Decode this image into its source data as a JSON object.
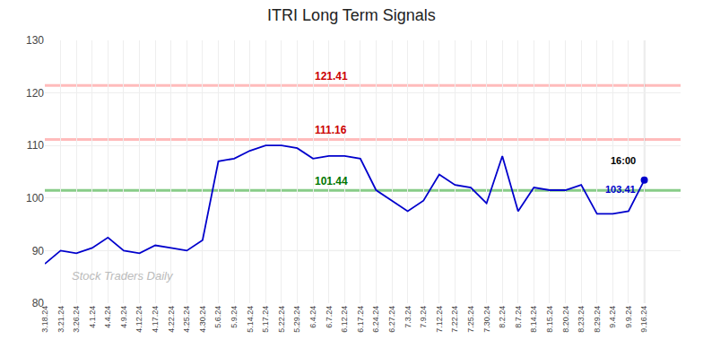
{
  "chart_data": {
    "type": "line",
    "title": "ITRI Long Term Signals",
    "categories": [
      "3.18.24",
      "3.21.24",
      "3.26.24",
      "4.1.24",
      "4.4.24",
      "4.9.24",
      "4.12.24",
      "4.17.24",
      "4.22.24",
      "4.25.24",
      "4.30.24",
      "5.6.24",
      "5.9.24",
      "5.14.24",
      "5.17.24",
      "5.22.24",
      "5.29.24",
      "6.4.24",
      "6.7.24",
      "6.12.24",
      "6.17.24",
      "6.24.24",
      "6.27.24",
      "7.3.24",
      "7.9.24",
      "7.12.24",
      "7.22.24",
      "7.25.24",
      "7.30.24",
      "8.2.24",
      "8.7.24",
      "8.14.24",
      "8.15.24",
      "8.20.24",
      "8.23.24",
      "8.29.24",
      "9.4.24",
      "9.9.24",
      "9.16.24"
    ],
    "values": [
      87.5,
      90.0,
      89.5,
      90.5,
      92.5,
      90.0,
      89.5,
      91.0,
      90.5,
      90.0,
      92.0,
      107.0,
      107.5,
      109.0,
      110.0,
      110.0,
      109.5,
      107.5,
      108.0,
      108.0,
      107.5,
      101.5,
      99.5,
      97.5,
      99.5,
      104.5,
      102.5,
      102.0,
      99.0,
      108.0,
      97.5,
      102.0,
      101.5,
      101.5,
      102.5,
      97.0,
      97.0,
      97.5,
      103.41
    ],
    "color": "#0000cc",
    "ylim": [
      80,
      130
    ],
    "yticks": [
      80,
      90,
      100,
      110,
      120,
      130
    ],
    "grid": true,
    "signal_lines": [
      {
        "value": 121.41,
        "color": "#ffbbbb",
        "label_color": "#cc0000"
      },
      {
        "value": 111.16,
        "color": "#ffbbbb",
        "label_color": "#cc0000"
      },
      {
        "value": 101.44,
        "color": "#88cc88",
        "label_color": "#007700"
      }
    ],
    "last_label": "16:00",
    "annotations": [
      {
        "text": "Stock Traders Daily"
      }
    ]
  }
}
